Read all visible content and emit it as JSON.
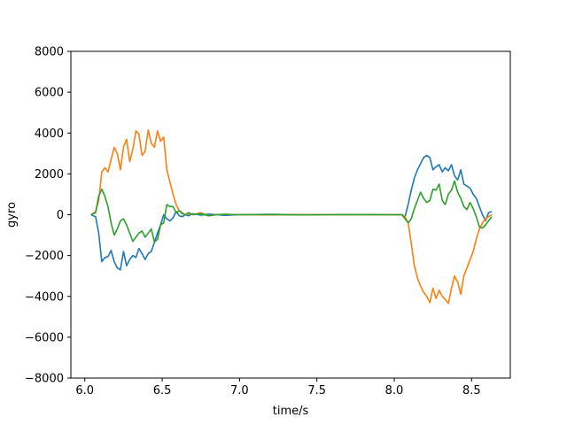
{
  "chart_data": {
    "type": "line",
    "xlabel": "time/s",
    "ylabel": "gyro",
    "xlim": [
      5.91,
      8.75
    ],
    "ylim": [
      -8000,
      8000
    ],
    "x_ticks": [
      6.0,
      6.5,
      7.0,
      7.5,
      8.0,
      8.5
    ],
    "x_tick_labels": [
      "6.0",
      "6.5",
      "7.0",
      "7.5",
      "8.0",
      "8.5"
    ],
    "y_ticks": [
      8000,
      6000,
      4000,
      2000,
      0,
      -2000,
      -4000,
      -6000,
      -8000
    ],
    "y_tick_labels": [
      "8000",
      "6000",
      "4000",
      "2000",
      "0",
      "−2000",
      "−4000",
      "−6000",
      "−8000"
    ],
    "grid": false,
    "series": [
      {
        "color": "#1f77b4",
        "points": [
          [
            6.04,
            0
          ],
          [
            6.07,
            -100
          ],
          [
            6.09,
            -900
          ],
          [
            6.11,
            -2300
          ],
          [
            6.13,
            -2100
          ],
          [
            6.15,
            -2050
          ],
          [
            6.17,
            -1750
          ],
          [
            6.19,
            -2300
          ],
          [
            6.21,
            -2600
          ],
          [
            6.23,
            -2700
          ],
          [
            6.25,
            -1800
          ],
          [
            6.27,
            -2500
          ],
          [
            6.29,
            -2200
          ],
          [
            6.31,
            -2000
          ],
          [
            6.33,
            -2100
          ],
          [
            6.35,
            -1650
          ],
          [
            6.37,
            -1900
          ],
          [
            6.39,
            -2200
          ],
          [
            6.41,
            -1900
          ],
          [
            6.43,
            -1800
          ],
          [
            6.45,
            -1350
          ],
          [
            6.47,
            -900
          ],
          [
            6.49,
            -500
          ],
          [
            6.51,
            0
          ],
          [
            6.53,
            -200
          ],
          [
            6.55,
            -300
          ],
          [
            6.57,
            -150
          ],
          [
            6.59,
            150
          ],
          [
            6.61,
            -50
          ],
          [
            6.63,
            -100
          ],
          [
            6.65,
            0
          ],
          [
            6.67,
            -50
          ],
          [
            6.7,
            50
          ],
          [
            6.75,
            -20
          ],
          [
            6.8,
            30
          ],
          [
            6.85,
            0
          ],
          [
            6.9,
            -30
          ],
          [
            7.0,
            0
          ],
          [
            7.2,
            20
          ],
          [
            7.4,
            -10
          ],
          [
            7.6,
            10
          ],
          [
            7.8,
            0
          ],
          [
            8.0,
            0
          ],
          [
            8.05,
            0
          ],
          [
            8.07,
            -100
          ],
          [
            8.09,
            500
          ],
          [
            8.11,
            1200
          ],
          [
            8.13,
            1800
          ],
          [
            8.15,
            2200
          ],
          [
            8.17,
            2500
          ],
          [
            8.19,
            2800
          ],
          [
            8.21,
            2900
          ],
          [
            8.23,
            2800
          ],
          [
            8.25,
            2200
          ],
          [
            8.27,
            2350
          ],
          [
            8.29,
            2450
          ],
          [
            8.31,
            2100
          ],
          [
            8.33,
            2300
          ],
          [
            8.35,
            2150
          ],
          [
            8.37,
            2450
          ],
          [
            8.39,
            1900
          ],
          [
            8.41,
            1700
          ],
          [
            8.43,
            2200
          ],
          [
            8.45,
            1500
          ],
          [
            8.47,
            1400
          ],
          [
            8.49,
            1300
          ],
          [
            8.51,
            1000
          ],
          [
            8.53,
            800
          ],
          [
            8.55,
            400
          ],
          [
            8.57,
            0
          ],
          [
            8.59,
            -300
          ],
          [
            8.61,
            100
          ],
          [
            8.63,
            150
          ]
        ]
      },
      {
        "color": "#ff7f0e",
        "points": [
          [
            6.04,
            0
          ],
          [
            6.07,
            150
          ],
          [
            6.09,
            700
          ],
          [
            6.11,
            2100
          ],
          [
            6.13,
            2300
          ],
          [
            6.15,
            2100
          ],
          [
            6.17,
            2700
          ],
          [
            6.19,
            3300
          ],
          [
            6.21,
            3000
          ],
          [
            6.23,
            2200
          ],
          [
            6.25,
            3300
          ],
          [
            6.27,
            3700
          ],
          [
            6.29,
            2600
          ],
          [
            6.31,
            3200
          ],
          [
            6.33,
            4100
          ],
          [
            6.35,
            3950
          ],
          [
            6.37,
            2900
          ],
          [
            6.39,
            3100
          ],
          [
            6.41,
            4150
          ],
          [
            6.43,
            3500
          ],
          [
            6.45,
            3300
          ],
          [
            6.47,
            4100
          ],
          [
            6.49,
            3600
          ],
          [
            6.51,
            3800
          ],
          [
            6.53,
            2200
          ],
          [
            6.55,
            1600
          ],
          [
            6.57,
            1000
          ],
          [
            6.59,
            500
          ],
          [
            6.61,
            200
          ],
          [
            6.63,
            100
          ],
          [
            6.65,
            0
          ],
          [
            6.67,
            50
          ],
          [
            6.7,
            0
          ],
          [
            6.75,
            100
          ],
          [
            6.8,
            -50
          ],
          [
            6.85,
            0
          ],
          [
            6.9,
            20
          ],
          [
            7.0,
            0
          ],
          [
            7.2,
            -10
          ],
          [
            7.4,
            10
          ],
          [
            7.6,
            0
          ],
          [
            7.8,
            10
          ],
          [
            8.0,
            0
          ],
          [
            8.05,
            0
          ],
          [
            8.07,
            -100
          ],
          [
            8.09,
            -400
          ],
          [
            8.11,
            -1400
          ],
          [
            8.13,
            -2500
          ],
          [
            8.15,
            -3100
          ],
          [
            8.17,
            -3500
          ],
          [
            8.19,
            -3800
          ],
          [
            8.21,
            -4000
          ],
          [
            8.23,
            -4300
          ],
          [
            8.25,
            -3600
          ],
          [
            8.27,
            -4100
          ],
          [
            8.29,
            -3700
          ],
          [
            8.31,
            -4000
          ],
          [
            8.33,
            -4150
          ],
          [
            8.35,
            -4350
          ],
          [
            8.37,
            -3600
          ],
          [
            8.39,
            -3000
          ],
          [
            8.41,
            -3300
          ],
          [
            8.43,
            -3900
          ],
          [
            8.45,
            -3000
          ],
          [
            8.47,
            -2600
          ],
          [
            8.49,
            -2200
          ],
          [
            8.51,
            -1800
          ],
          [
            8.53,
            -1200
          ],
          [
            8.55,
            -700
          ],
          [
            8.57,
            -400
          ],
          [
            8.59,
            -200
          ],
          [
            8.61,
            -100
          ],
          [
            8.63,
            0
          ]
        ]
      },
      {
        "color": "#2ca02c",
        "points": [
          [
            6.04,
            0
          ],
          [
            6.07,
            100
          ],
          [
            6.09,
            900
          ],
          [
            6.11,
            1250
          ],
          [
            6.13,
            900
          ],
          [
            6.15,
            400
          ],
          [
            6.17,
            -400
          ],
          [
            6.19,
            -1000
          ],
          [
            6.21,
            -700
          ],
          [
            6.23,
            -300
          ],
          [
            6.25,
            -200
          ],
          [
            6.27,
            -500
          ],
          [
            6.29,
            -900
          ],
          [
            6.31,
            -1300
          ],
          [
            6.33,
            -1100
          ],
          [
            6.35,
            -900
          ],
          [
            6.37,
            -800
          ],
          [
            6.39,
            -1100
          ],
          [
            6.41,
            -900
          ],
          [
            6.43,
            -700
          ],
          [
            6.45,
            -1350
          ],
          [
            6.47,
            -1200
          ],
          [
            6.49,
            -500
          ],
          [
            6.51,
            -400
          ],
          [
            6.53,
            500
          ],
          [
            6.55,
            400
          ],
          [
            6.57,
            400
          ],
          [
            6.59,
            100
          ],
          [
            6.61,
            200
          ],
          [
            6.63,
            50
          ],
          [
            6.65,
            0
          ],
          [
            6.67,
            100
          ],
          [
            6.7,
            0
          ],
          [
            6.75,
            50
          ],
          [
            6.8,
            -50
          ],
          [
            6.85,
            0
          ],
          [
            6.9,
            20
          ],
          [
            7.0,
            0
          ],
          [
            7.2,
            10
          ],
          [
            7.4,
            -10
          ],
          [
            7.6,
            0
          ],
          [
            7.8,
            10
          ],
          [
            8.0,
            0
          ],
          [
            8.05,
            0
          ],
          [
            8.07,
            -200
          ],
          [
            8.09,
            -400
          ],
          [
            8.11,
            -200
          ],
          [
            8.13,
            300
          ],
          [
            8.15,
            700
          ],
          [
            8.17,
            1100
          ],
          [
            8.19,
            800
          ],
          [
            8.21,
            600
          ],
          [
            8.23,
            700
          ],
          [
            8.25,
            1250
          ],
          [
            8.27,
            1200
          ],
          [
            8.29,
            1500
          ],
          [
            8.31,
            700
          ],
          [
            8.33,
            500
          ],
          [
            8.35,
            1000
          ],
          [
            8.37,
            1200
          ],
          [
            8.39,
            1650
          ],
          [
            8.41,
            1100
          ],
          [
            8.43,
            800
          ],
          [
            8.45,
            400
          ],
          [
            8.47,
            250
          ],
          [
            8.49,
            600
          ],
          [
            8.51,
            300
          ],
          [
            8.53,
            -100
          ],
          [
            8.55,
            -600
          ],
          [
            8.57,
            -650
          ],
          [
            8.59,
            -500
          ],
          [
            8.61,
            -300
          ],
          [
            8.63,
            -100
          ]
        ]
      }
    ]
  }
}
